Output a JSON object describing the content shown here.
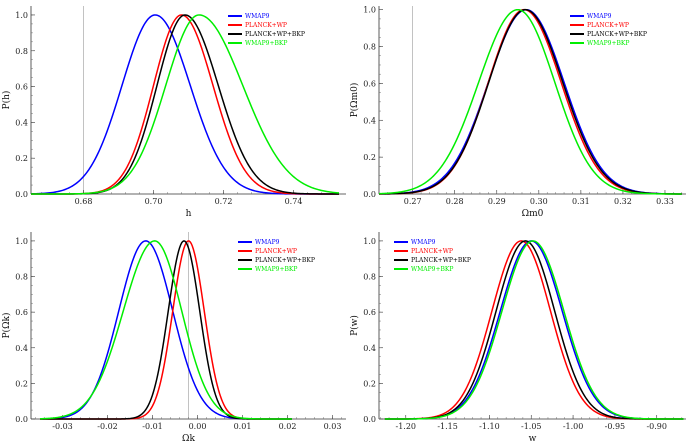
{
  "chart_data": [
    {
      "type": "line",
      "xlabel": "h",
      "ylabel": "P(h)",
      "xlim": [
        0.665,
        0.755
      ],
      "ylim": [
        0,
        1.05
      ],
      "xticks": [
        0.68,
        0.7,
        0.72,
        0.74
      ],
      "xtick_labels": [
        "0.68",
        "0.70",
        "0.72",
        "0.74"
      ],
      "yticks": [
        0.0,
        0.2,
        0.4,
        0.6,
        0.8,
        1.0
      ],
      "ytick_labels": [
        "0.0",
        "0.2",
        "0.4",
        "0.6",
        "0.8",
        "1.0"
      ],
      "refline_x": 0.68,
      "x_range": [
        0.665,
        0.753
      ],
      "legend_position": "top-right",
      "series": [
        {
          "name": "WMAP9",
          "color": "#0000ff",
          "peak": 0.7005,
          "sigma_left": 0.0095,
          "sigma_right": 0.01
        },
        {
          "name": "PLANCK+WP",
          "color": "#ff0000",
          "peak": 0.708,
          "sigma_left": 0.008,
          "sigma_right": 0.009
        },
        {
          "name": "PLANCK+WP+BKP",
          "color": "#000000",
          "peak": 0.709,
          "sigma_left": 0.008,
          "sigma_right": 0.0095
        },
        {
          "name": "WMAP9+BKP",
          "color": "#00ee00",
          "peak": 0.713,
          "sigma_left": 0.0095,
          "sigma_right": 0.0125
        }
      ]
    },
    {
      "type": "line",
      "xlabel": "Ωm0",
      "ylabel": "P(Ωm0)",
      "xlim": [
        0.262,
        0.335
      ],
      "ylim": [
        0,
        1.02
      ],
      "xticks": [
        0.27,
        0.28,
        0.29,
        0.3,
        0.31,
        0.32,
        0.33
      ],
      "xtick_labels": [
        "0.27",
        "0.28",
        "0.29",
        "0.30",
        "0.31",
        "0.32",
        "0.33"
      ],
      "yticks": [
        0.0,
        0.2,
        0.4,
        0.6,
        0.8,
        1.0
      ],
      "ytick_labels": [
        "0.0",
        "0.2",
        "0.4",
        "0.6",
        "0.8",
        "1.0"
      ],
      "refline_x": 0.27,
      "x_range": [
        0.262,
        0.334
      ],
      "legend_position": "top-right",
      "series": [
        {
          "name": "WMAP9",
          "color": "#0000ff",
          "peak": 0.297,
          "sigma_left": 0.009,
          "sigma_right": 0.009
        },
        {
          "name": "PLANCK+WP",
          "color": "#ff0000",
          "peak": 0.2965,
          "sigma_left": 0.0085,
          "sigma_right": 0.0088
        },
        {
          "name": "PLANCK+WP+BKP",
          "color": "#000000",
          "peak": 0.2968,
          "sigma_left": 0.0087,
          "sigma_right": 0.0089
        },
        {
          "name": "WMAP9+BKP",
          "color": "#00ee00",
          "peak": 0.295,
          "sigma_left": 0.0093,
          "sigma_right": 0.0088
        }
      ]
    },
    {
      "type": "line",
      "xlabel": "Ωk",
      "ylabel": "P(Ωk)",
      "xlim": [
        -0.037,
        0.033
      ],
      "ylim": [
        0,
        1.05
      ],
      "xticks": [
        -0.03,
        -0.02,
        -0.01,
        0.0,
        0.01,
        0.02,
        0.03
      ],
      "xtick_labels": [
        "-0.03",
        "-0.02",
        "-0.01",
        "0.00",
        "0.01",
        "0.02",
        "0.03"
      ],
      "yticks": [
        0.0,
        0.2,
        0.4,
        0.6,
        0.8,
        1.0
      ],
      "ytick_labels": [
        "0.0",
        "0.2",
        "0.4",
        "0.6",
        "0.8",
        "1.0"
      ],
      "refline_x": -0.002,
      "x_range": [
        -0.035,
        0.021
      ],
      "legend_position": "top-right",
      "series": [
        {
          "name": "WMAP9",
          "color": "#0000ff",
          "peak": -0.0115,
          "sigma_left": 0.006,
          "sigma_right": 0.006
        },
        {
          "name": "PLANCK+WP",
          "color": "#ff0000",
          "peak": -0.002,
          "sigma_left": 0.0035,
          "sigma_right": 0.0035
        },
        {
          "name": "PLANCK+WP+BKP",
          "color": "#000000",
          "peak": -0.003,
          "sigma_left": 0.0035,
          "sigma_right": 0.0035
        },
        {
          "name": "WMAP9+BKP",
          "color": "#00ee00",
          "peak": -0.0095,
          "sigma_left": 0.007,
          "sigma_right": 0.006
        }
      ]
    },
    {
      "type": "line",
      "xlabel": "w",
      "ylabel": "P(w)",
      "xlim": [
        -1.232,
        -0.865
      ],
      "ylim": [
        0,
        1.05
      ],
      "xticks": [
        -1.2,
        -1.15,
        -1.1,
        -1.05,
        -1.0,
        -0.95,
        -0.9
      ],
      "xtick_labels": [
        "-1.20",
        "-1.15",
        "-1.10",
        "-1.05",
        "-1.00",
        "-0.95",
        "-0.90"
      ],
      "yticks": [
        0.0,
        0.2,
        0.4,
        0.6,
        0.8,
        1.0
      ],
      "ytick_labels": [
        "0.0",
        "0.2",
        "0.4",
        "0.6",
        "0.8",
        "1.0"
      ],
      "refline_x": null,
      "x_range": [
        -1.225,
        -0.868
      ],
      "legend_position": "top-left",
      "series": [
        {
          "name": "WMAP9",
          "color": "#0000ff",
          "peak": -1.05,
          "sigma_left": 0.037,
          "sigma_right": 0.037
        },
        {
          "name": "PLANCK+WP",
          "color": "#ff0000",
          "peak": -1.062,
          "sigma_left": 0.035,
          "sigma_right": 0.035
        },
        {
          "name": "PLANCK+WP+BKP",
          "color": "#000000",
          "peak": -1.057,
          "sigma_left": 0.035,
          "sigma_right": 0.035
        },
        {
          "name": "WMAP9+BKP",
          "color": "#00ee00",
          "peak": -1.048,
          "sigma_left": 0.037,
          "sigma_right": 0.037
        }
      ]
    }
  ]
}
